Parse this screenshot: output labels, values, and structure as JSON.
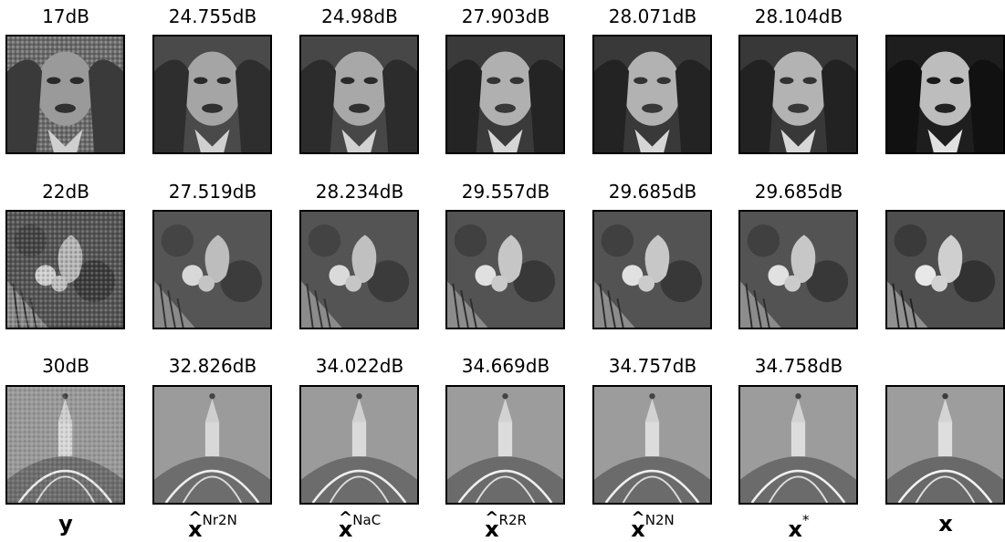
{
  "rows": [
    {
      "name": "woman-face",
      "psnr": [
        "17dB",
        "24.755dB",
        "24.98dB",
        "27.903dB",
        "28.071dB",
        "28.104dB",
        ""
      ]
    },
    {
      "name": "flowers",
      "psnr": [
        "22dB",
        "27.519dB",
        "28.234dB",
        "29.557dB",
        "29.685dB",
        "29.685dB",
        ""
      ]
    },
    {
      "name": "dome",
      "psnr": [
        "30dB",
        "32.826dB",
        "34.022dB",
        "34.669dB",
        "34.757dB",
        "34.758dB",
        ""
      ]
    }
  ],
  "columns": [
    {
      "base": "y",
      "sup": "",
      "hat": false
    },
    {
      "base": "x",
      "sup": "Nr2N",
      "hat": true
    },
    {
      "base": "x",
      "sup": "NaC",
      "hat": true
    },
    {
      "base": "x",
      "sup": "R2R",
      "hat": true
    },
    {
      "base": "x",
      "sup": "N2N",
      "hat": true
    },
    {
      "base": "x",
      "sup": "*",
      "hat": false
    },
    {
      "base": "x",
      "sup": "",
      "hat": false
    }
  ]
}
